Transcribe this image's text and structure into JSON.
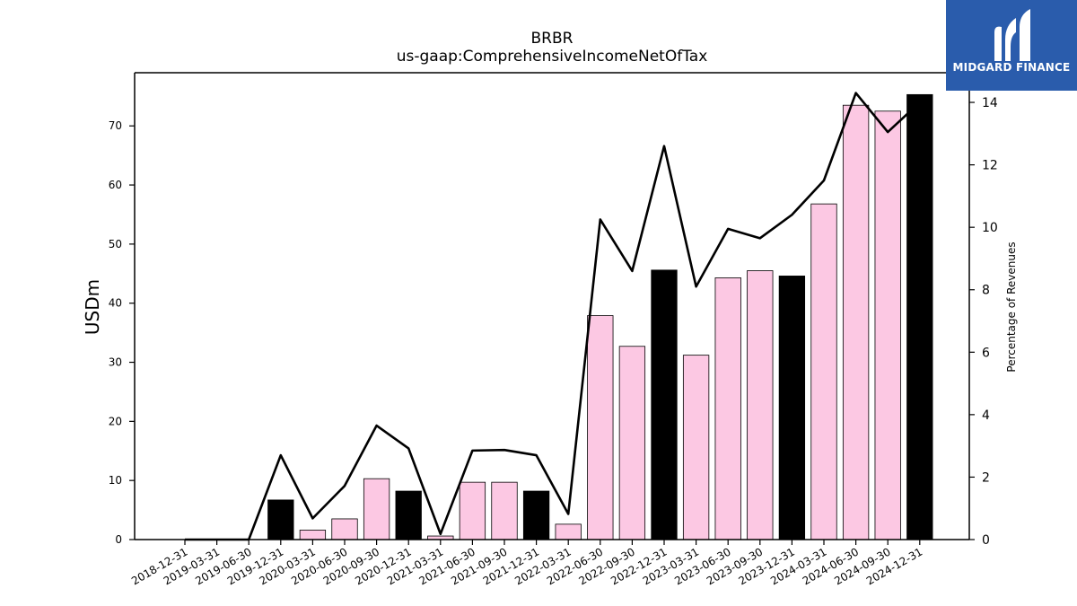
{
  "logo": {
    "text": "MIDGARD FINANCE",
    "background": "#2a5cac",
    "icon": "midgard-m-logo-icon"
  },
  "chart_data": {
    "type": "bar",
    "title": "BRBR",
    "subtitle": "us-gaap:ComprehensiveIncomeNetOfTax",
    "ylabel": "USDm",
    "y2label": "Percentage of Revenues",
    "ylim": [
      0,
      79
    ],
    "y2lim": [
      0,
      14.95
    ],
    "yticks": [
      0,
      10,
      20,
      30,
      40,
      50,
      60,
      70
    ],
    "y2ticks": [
      0,
      2,
      4,
      6,
      8,
      10,
      12,
      14
    ],
    "categories": [
      "2018-12-31",
      "2019-03-31",
      "2019-06-30",
      "2019-12-31",
      "2020-03-31",
      "2020-06-30",
      "2020-09-30",
      "2020-12-31",
      "2021-03-31",
      "2021-06-30",
      "2021-09-30",
      "2021-12-31",
      "2022-03-31",
      "2022-06-30",
      "2022-09-30",
      "2022-12-31",
      "2023-03-31",
      "2023-06-30",
      "2023-09-30",
      "2023-12-31",
      "2024-03-31",
      "2024-06-30",
      "2024-09-30",
      "2024-12-31"
    ],
    "series": [
      {
        "kind": "bar",
        "values": [
          0,
          0,
          0,
          6.7,
          1.6,
          3.5,
          10.3,
          8.2,
          0.6,
          9.7,
          9.7,
          8.2,
          2.6,
          37.9,
          32.7,
          45.6,
          31.2,
          44.3,
          45.5,
          44.6,
          56.8,
          73.5,
          72.5,
          75.3
        ],
        "highlight": [
          false,
          false,
          false,
          true,
          false,
          false,
          false,
          true,
          false,
          false,
          false,
          true,
          false,
          false,
          false,
          true,
          false,
          false,
          false,
          true,
          false,
          false,
          false,
          true
        ]
      },
      {
        "kind": "line",
        "axis": "right",
        "values": [
          0,
          0,
          0,
          2.7,
          0.68,
          1.72,
          3.65,
          2.92,
          0.18,
          2.85,
          2.87,
          2.7,
          0.82,
          10.25,
          8.6,
          12.6,
          8.1,
          9.95,
          9.65,
          10.4,
          11.5,
          14.3,
          13.05,
          14.0
        ]
      }
    ],
    "colors": {
      "bar": "#fcc8e3",
      "bar_highlight": "#000000",
      "bar_edge": "#000000",
      "line": "#000000"
    },
    "grid": false
  }
}
